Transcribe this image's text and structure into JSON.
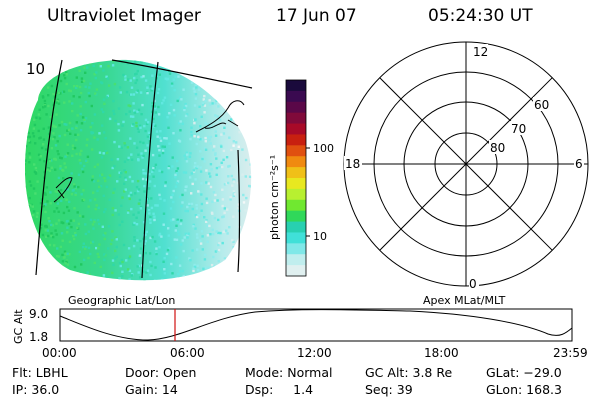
{
  "header": {
    "instrument": "Ultraviolet Imager",
    "date": "17 Jun 07",
    "time": "05:24:30 UT"
  },
  "image_panel": {
    "corner_label": "10",
    "projection_label": "Geographic Lat/Lon"
  },
  "colorbar": {
    "unit_label": "photon cm⁻²s⁻¹",
    "ticks": [
      "100",
      "10"
    ],
    "colors": [
      "#1a0a3c",
      "#3a0a50",
      "#5a0848",
      "#800a3a",
      "#a80a28",
      "#c82010",
      "#e05010",
      "#f08a10",
      "#f0c018",
      "#e8e820",
      "#b8f030",
      "#70e830",
      "#30d85a",
      "#28d0b0",
      "#40e0d8",
      "#80e8e8",
      "#c0eeee",
      "#e0f0f0"
    ]
  },
  "polar_plot": {
    "projection_label": "Apex MLat/MLT",
    "mlt_labels": {
      "top": "12",
      "right": "6",
      "bottom": "0",
      "left": "18"
    },
    "lat_labels": [
      "60",
      "70",
      "80"
    ]
  },
  "altitude_plot": {
    "ylabel": "GC Alt",
    "ytick_top": "9.0",
    "ytick_bottom": "1.8",
    "xticks": [
      "00:00",
      "06:00",
      "12:00",
      "18:00",
      "23:59"
    ]
  },
  "status": {
    "flt": "Flt: LBHL",
    "ip": "IP: 36.0",
    "door": "Door: Open",
    "gain": "Gain: 14",
    "mode": "Mode: Normal",
    "dsp": "Dsp:     1.4",
    "gc_alt": "GC Alt: 3.8 Re",
    "seq": "Seq: 39",
    "glat": "GLat: −29.0",
    "glon": "GLon: 168.3"
  }
}
